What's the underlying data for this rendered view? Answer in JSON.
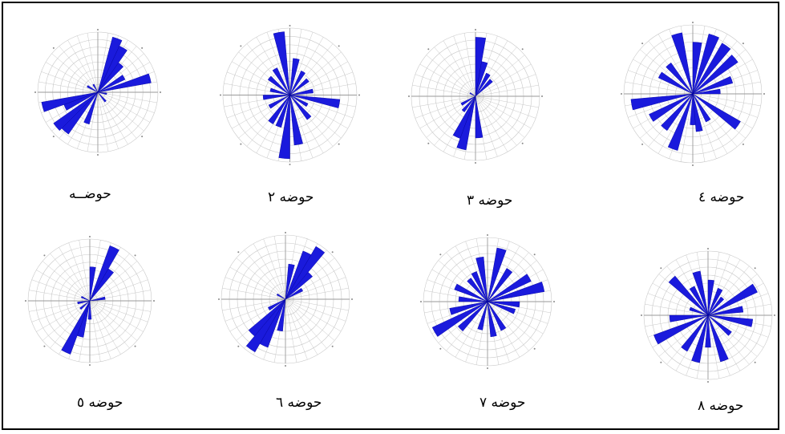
{
  "figure": {
    "captions": [
      "حوضــه",
      "حوضه ٢",
      "حوضه ٣",
      "حوضه ٤",
      "حوضه ٥",
      "حوضه ٦",
      "حوضه ٧",
      "حوضه ٨"
    ]
  },
  "colors": {
    "petal": "#1a1adc",
    "grid": "#c8c8c8",
    "axis": "#9a9a9a",
    "background": "#ffffff"
  },
  "chart_data": [
    {
      "type": "rose",
      "caption": "حوضــه",
      "bin_deg": 10,
      "petals": [
        {
          "dir": 20,
          "len": 0.95
        },
        {
          "dir": 30,
          "len": 0.85
        },
        {
          "dir": 40,
          "len": 0.6
        },
        {
          "dir": 60,
          "len": 0.5
        },
        {
          "dir": 75,
          "len": 0.9
        },
        {
          "dir": 100,
          "len": 0.15
        },
        {
          "dir": 140,
          "len": 0.2
        },
        {
          "dir": 200,
          "len": 0.55
        },
        {
          "dir": 220,
          "len": 0.85
        },
        {
          "dir": 230,
          "len": 0.9
        },
        {
          "dir": 245,
          "len": 0.6
        },
        {
          "dir": 255,
          "len": 0.95
        },
        {
          "dir": 300,
          "len": 0.2
        },
        {
          "dir": 330,
          "len": 0.15
        }
      ]
    },
    {
      "type": "rose",
      "caption": "حوضه ٢",
      "bin_deg": 10,
      "petals": [
        {
          "dir": 350,
          "len": 0.95
        },
        {
          "dir": 10,
          "len": 0.55
        },
        {
          "dir": 30,
          "len": 0.4
        },
        {
          "dir": 50,
          "len": 0.35
        },
        {
          "dir": 80,
          "len": 0.35
        },
        {
          "dir": 100,
          "len": 0.75
        },
        {
          "dir": 120,
          "len": 0.3
        },
        {
          "dir": 140,
          "len": 0.45
        },
        {
          "dir": 170,
          "len": 0.75
        },
        {
          "dir": 185,
          "len": 0.95
        },
        {
          "dir": 200,
          "len": 0.5
        },
        {
          "dir": 215,
          "len": 0.5
        },
        {
          "dir": 240,
          "len": 0.35
        },
        {
          "dir": 265,
          "len": 0.4
        },
        {
          "dir": 285,
          "len": 0.3
        },
        {
          "dir": 310,
          "len": 0.4
        },
        {
          "dir": 330,
          "len": 0.45
        }
      ]
    },
    {
      "type": "rose",
      "caption": "حوضه ٣",
      "bin_deg": 10,
      "petals": [
        {
          "dir": 5,
          "len": 0.92
        },
        {
          "dir": 15,
          "len": 0.55
        },
        {
          "dir": 30,
          "len": 0.4
        },
        {
          "dir": 45,
          "len": 0.35
        },
        {
          "dir": 175,
          "len": 0.65
        },
        {
          "dir": 195,
          "len": 0.85
        },
        {
          "dir": 205,
          "len": 0.7
        },
        {
          "dir": 220,
          "len": 0.3
        },
        {
          "dir": 240,
          "len": 0.25
        },
        {
          "dir": 300,
          "len": 0.1
        }
      ]
    },
    {
      "type": "rose",
      "caption": "حوضه ٤",
      "bin_deg": 10,
      "petals": [
        {
          "dir": 345,
          "len": 0.9
        },
        {
          "dir": 5,
          "len": 0.75
        },
        {
          "dir": 20,
          "len": 0.9
        },
        {
          "dir": 35,
          "len": 0.85
        },
        {
          "dir": 50,
          "len": 0.8
        },
        {
          "dir": 70,
          "len": 0.6
        },
        {
          "dir": 85,
          "len": 0.4
        },
        {
          "dir": 125,
          "len": 0.8
        },
        {
          "dir": 150,
          "len": 0.45
        },
        {
          "dir": 170,
          "len": 0.55
        },
        {
          "dir": 180,
          "len": 0.45
        },
        {
          "dir": 200,
          "len": 0.85
        },
        {
          "dir": 220,
          "len": 0.65
        },
        {
          "dir": 240,
          "len": 0.7
        },
        {
          "dir": 260,
          "len": 0.9
        },
        {
          "dir": 300,
          "len": 0.55
        },
        {
          "dir": 320,
          "len": 0.55
        }
      ]
    },
    {
      "type": "rose",
      "caption": "حوضه ٥",
      "bin_deg": 10,
      "petals": [
        {
          "dir": 5,
          "len": 0.55
        },
        {
          "dir": 25,
          "len": 0.95
        },
        {
          "dir": 35,
          "len": 0.6
        },
        {
          "dir": 80,
          "len": 0.25
        },
        {
          "dir": 180,
          "len": 0.3
        },
        {
          "dir": 195,
          "len": 0.6
        },
        {
          "dir": 205,
          "len": 0.92
        },
        {
          "dir": 230,
          "len": 0.2
        },
        {
          "dir": 260,
          "len": 0.2
        },
        {
          "dir": 295,
          "len": 0.15
        }
      ]
    },
    {
      "type": "rose",
      "caption": "حوضه ٦",
      "bin_deg": 10,
      "petals": [
        {
          "dir": 10,
          "len": 0.55
        },
        {
          "dir": 25,
          "len": 0.8
        },
        {
          "dir": 35,
          "len": 0.95
        },
        {
          "dir": 45,
          "len": 0.55
        },
        {
          "dir": 60,
          "len": 0.3
        },
        {
          "dir": 190,
          "len": 0.5
        },
        {
          "dir": 205,
          "len": 0.8
        },
        {
          "dir": 215,
          "len": 0.95
        },
        {
          "dir": 225,
          "len": 0.75
        },
        {
          "dir": 240,
          "len": 0.3
        },
        {
          "dir": 300,
          "len": 0.15
        }
      ]
    },
    {
      "type": "rose",
      "caption": "حوضه ٧",
      "bin_deg": 10,
      "petals": [
        {
          "dir": 350,
          "len": 0.7
        },
        {
          "dir": 15,
          "len": 0.85
        },
        {
          "dir": 35,
          "len": 0.6
        },
        {
          "dir": 60,
          "len": 0.75
        },
        {
          "dir": 75,
          "len": 0.9
        },
        {
          "dir": 95,
          "len": 0.5
        },
        {
          "dir": 110,
          "len": 0.45
        },
        {
          "dir": 150,
          "len": 0.5
        },
        {
          "dir": 170,
          "len": 0.55
        },
        {
          "dir": 195,
          "len": 0.45
        },
        {
          "dir": 225,
          "len": 0.6
        },
        {
          "dir": 240,
          "len": 0.95
        },
        {
          "dir": 255,
          "len": 0.6
        },
        {
          "dir": 275,
          "len": 0.45
        },
        {
          "dir": 295,
          "len": 0.55
        },
        {
          "dir": 320,
          "len": 0.45
        },
        {
          "dir": 335,
          "len": 0.5
        }
      ]
    },
    {
      "type": "rose",
      "caption": "حوضه ٨",
      "bin_deg": 10,
      "petals": [
        {
          "dir": 345,
          "len": 0.7
        },
        {
          "dir": 5,
          "len": 0.55
        },
        {
          "dir": 25,
          "len": 0.45
        },
        {
          "dir": 40,
          "len": 0.35
        },
        {
          "dir": 60,
          "len": 0.85
        },
        {
          "dir": 80,
          "len": 0.55
        },
        {
          "dir": 100,
          "len": 0.7
        },
        {
          "dir": 130,
          "len": 0.45
        },
        {
          "dir": 160,
          "len": 0.75
        },
        {
          "dir": 180,
          "len": 0.5
        },
        {
          "dir": 195,
          "len": 0.75
        },
        {
          "dir": 215,
          "len": 0.65
        },
        {
          "dir": 245,
          "len": 0.9
        },
        {
          "dir": 265,
          "len": 0.6
        },
        {
          "dir": 290,
          "len": 0.3
        },
        {
          "dir": 315,
          "len": 0.8
        },
        {
          "dir": 330,
          "len": 0.5
        }
      ]
    }
  ]
}
